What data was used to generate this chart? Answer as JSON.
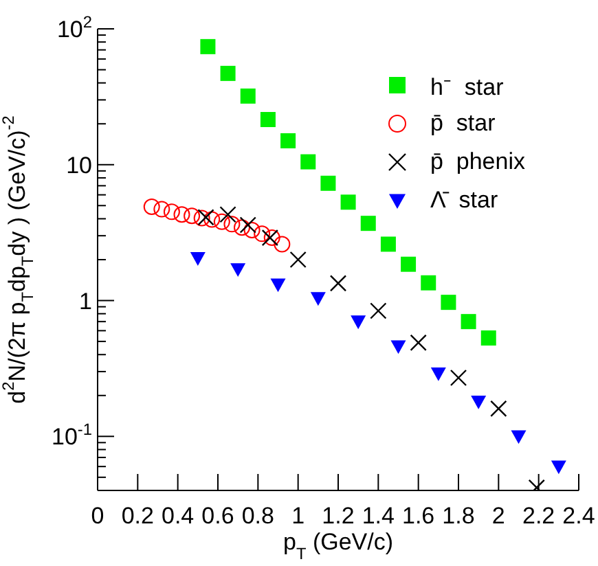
{
  "chart_data": {
    "type": "scatter",
    "xlabel": "p$_{T}$ (GeV/c)",
    "ylabel": "d$^{2}$N/(2π p$_{T}$dp$_{T}$dy )  (GeV/c)$^{-2}$",
    "log": "y",
    "grid": false,
    "legend": "top right",
    "xlim": [
      0,
      2.4
    ],
    "xticks": [
      0,
      0.2,
      0.4,
      0.6,
      0.8,
      1,
      1.2,
      1.4,
      1.6,
      1.8,
      2,
      2.2,
      2.4
    ],
    "ylim": [
      0.04,
      100
    ],
    "yticks": [
      {
        "value": 0.04,
        "label": null
      },
      {
        "value": 0.05,
        "label": null
      },
      {
        "value": 0.06,
        "label": null
      },
      {
        "value": 0.07,
        "label": null
      },
      {
        "value": 0.08,
        "label": null
      },
      {
        "value": 0.09,
        "label": null
      },
      {
        "value": 0.1,
        "label": "10$^{-1}$"
      },
      {
        "value": 0.2,
        "label": null
      },
      {
        "value": 0.3,
        "label": null
      },
      {
        "value": 0.4,
        "label": null
      },
      {
        "value": 0.5,
        "label": null
      },
      {
        "value": 0.6,
        "label": null
      },
      {
        "value": 0.7,
        "label": null
      },
      {
        "value": 0.8,
        "label": null
      },
      {
        "value": 0.9,
        "label": null
      },
      1,
      {
        "value": 2,
        "label": null
      },
      {
        "value": 3,
        "label": null
      },
      {
        "value": 4,
        "label": null
      },
      {
        "value": 5,
        "label": null
      },
      {
        "value": 6,
        "label": null
      },
      {
        "value": 7,
        "label": null
      },
      {
        "value": 8,
        "label": null
      },
      {
        "value": 9,
        "label": null
      },
      10,
      {
        "value": 20,
        "label": null
      },
      {
        "value": 30,
        "label": null
      },
      {
        "value": 40,
        "label": null
      },
      {
        "value": 50,
        "label": null
      },
      {
        "value": 60,
        "label": null
      },
      {
        "value": 70,
        "label": null
      },
      {
        "value": 80,
        "label": null
      },
      {
        "value": 90,
        "label": null
      },
      {
        "value": 100,
        "label": "10$^{2}$"
      }
    ],
    "series": [
      {
        "name": "h⁻  star",
        "color": "#00ee00",
        "marker": "square",
        "x": [
          0.55,
          0.65,
          0.75,
          0.85,
          0.95,
          1.05,
          1.15,
          1.25,
          1.35,
          1.45,
          1.55,
          1.65,
          1.75,
          1.85,
          1.95
        ],
        "values": [
          74,
          47,
          32,
          21.5,
          15,
          10.5,
          7.3,
          5.3,
          3.7,
          2.6,
          1.85,
          1.35,
          0.97,
          0.7,
          0.53
        ]
      },
      {
        "name": "p̄  star",
        "color": "#ff0000",
        "marker": "circle",
        "x": [
          0.27,
          0.32,
          0.37,
          0.42,
          0.47,
          0.52,
          0.57,
          0.62,
          0.67,
          0.72,
          0.77,
          0.82,
          0.87,
          0.92
        ],
        "values": [
          4.9,
          4.7,
          4.5,
          4.3,
          4.2,
          4.05,
          3.95,
          3.8,
          3.65,
          3.45,
          3.3,
          3.1,
          2.9,
          2.6
        ]
      },
      {
        "name": "p̄  phenix",
        "color": "#000000",
        "marker": "cross",
        "x": [
          0.54,
          0.65,
          0.75,
          0.86,
          1.0,
          1.2,
          1.4,
          1.6,
          1.8,
          2.0,
          2.19
        ],
        "values": [
          4.1,
          4.3,
          3.6,
          2.9,
          2.0,
          1.34,
          0.84,
          0.49,
          0.27,
          0.16,
          0.042
        ]
      },
      {
        "name": "Λ̄  star",
        "color": "#0000ff",
        "marker": "triangle",
        "x": [
          0.5,
          0.7,
          0.9,
          1.1,
          1.3,
          1.5,
          1.7,
          1.9,
          2.1,
          2.3
        ],
        "values": [
          2.05,
          1.7,
          1.31,
          1.04,
          0.7,
          0.46,
          0.29,
          0.18,
          0.1,
          0.06
        ]
      }
    ]
  }
}
